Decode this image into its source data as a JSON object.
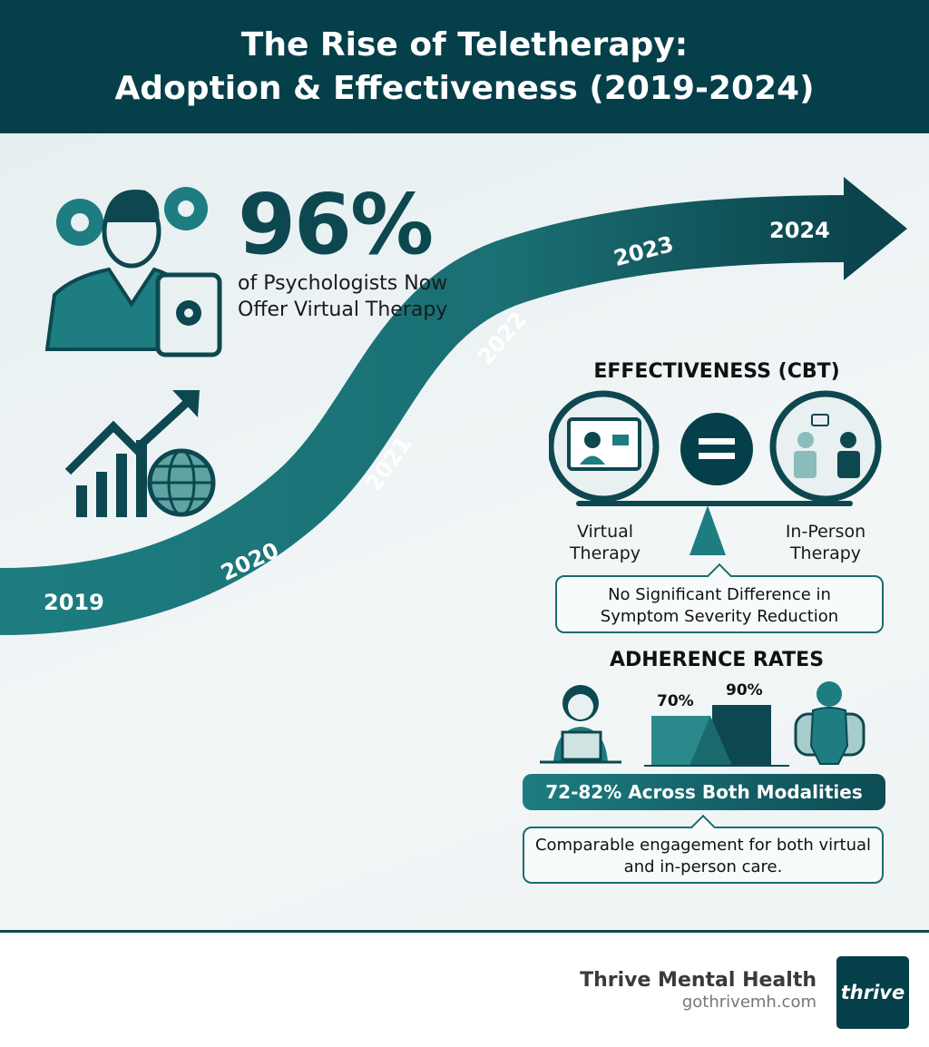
{
  "header": {
    "title_line1": "The Rise of Teletherapy:",
    "title_line2": "Adoption & Effectiveness (2019-2024)"
  },
  "timeline": {
    "years": [
      "2019",
      "2020",
      "2021",
      "2022",
      "2023",
      "2024"
    ]
  },
  "adoption": {
    "stat": "96%",
    "label": "of Psychologists Now Offer Virtual Therapy"
  },
  "effectiveness": {
    "heading": "EFFECTIVENESS (CBT)",
    "left_label": "Virtual Therapy",
    "right_label": "In-Person Therapy",
    "callout": "No Significant Difference in Symptom Severity Reduction"
  },
  "adherence": {
    "heading": "ADHERENCE RATES",
    "bar_values": [
      "70%",
      "90%"
    ],
    "band": "72-82% Across Both Modalities",
    "callout": "Comparable engagement for both virtual and in-person care."
  },
  "footer": {
    "brand": "Thrive Mental Health",
    "url": "gothrivemh.com",
    "logo_text": "thrive"
  },
  "colors": {
    "header": "#053f49",
    "teal": "#1d7d80",
    "dark_teal": "#0d4850"
  },
  "icons": [
    "professional-with-gears-icon",
    "tablet-gear-icon",
    "growth-chart-icon",
    "globe-icon",
    "video-call-monitor-icon",
    "equals-icon",
    "in-person-session-icon",
    "scale-fulcrum-icon",
    "headset-agent-icon",
    "seated-person-icon"
  ]
}
